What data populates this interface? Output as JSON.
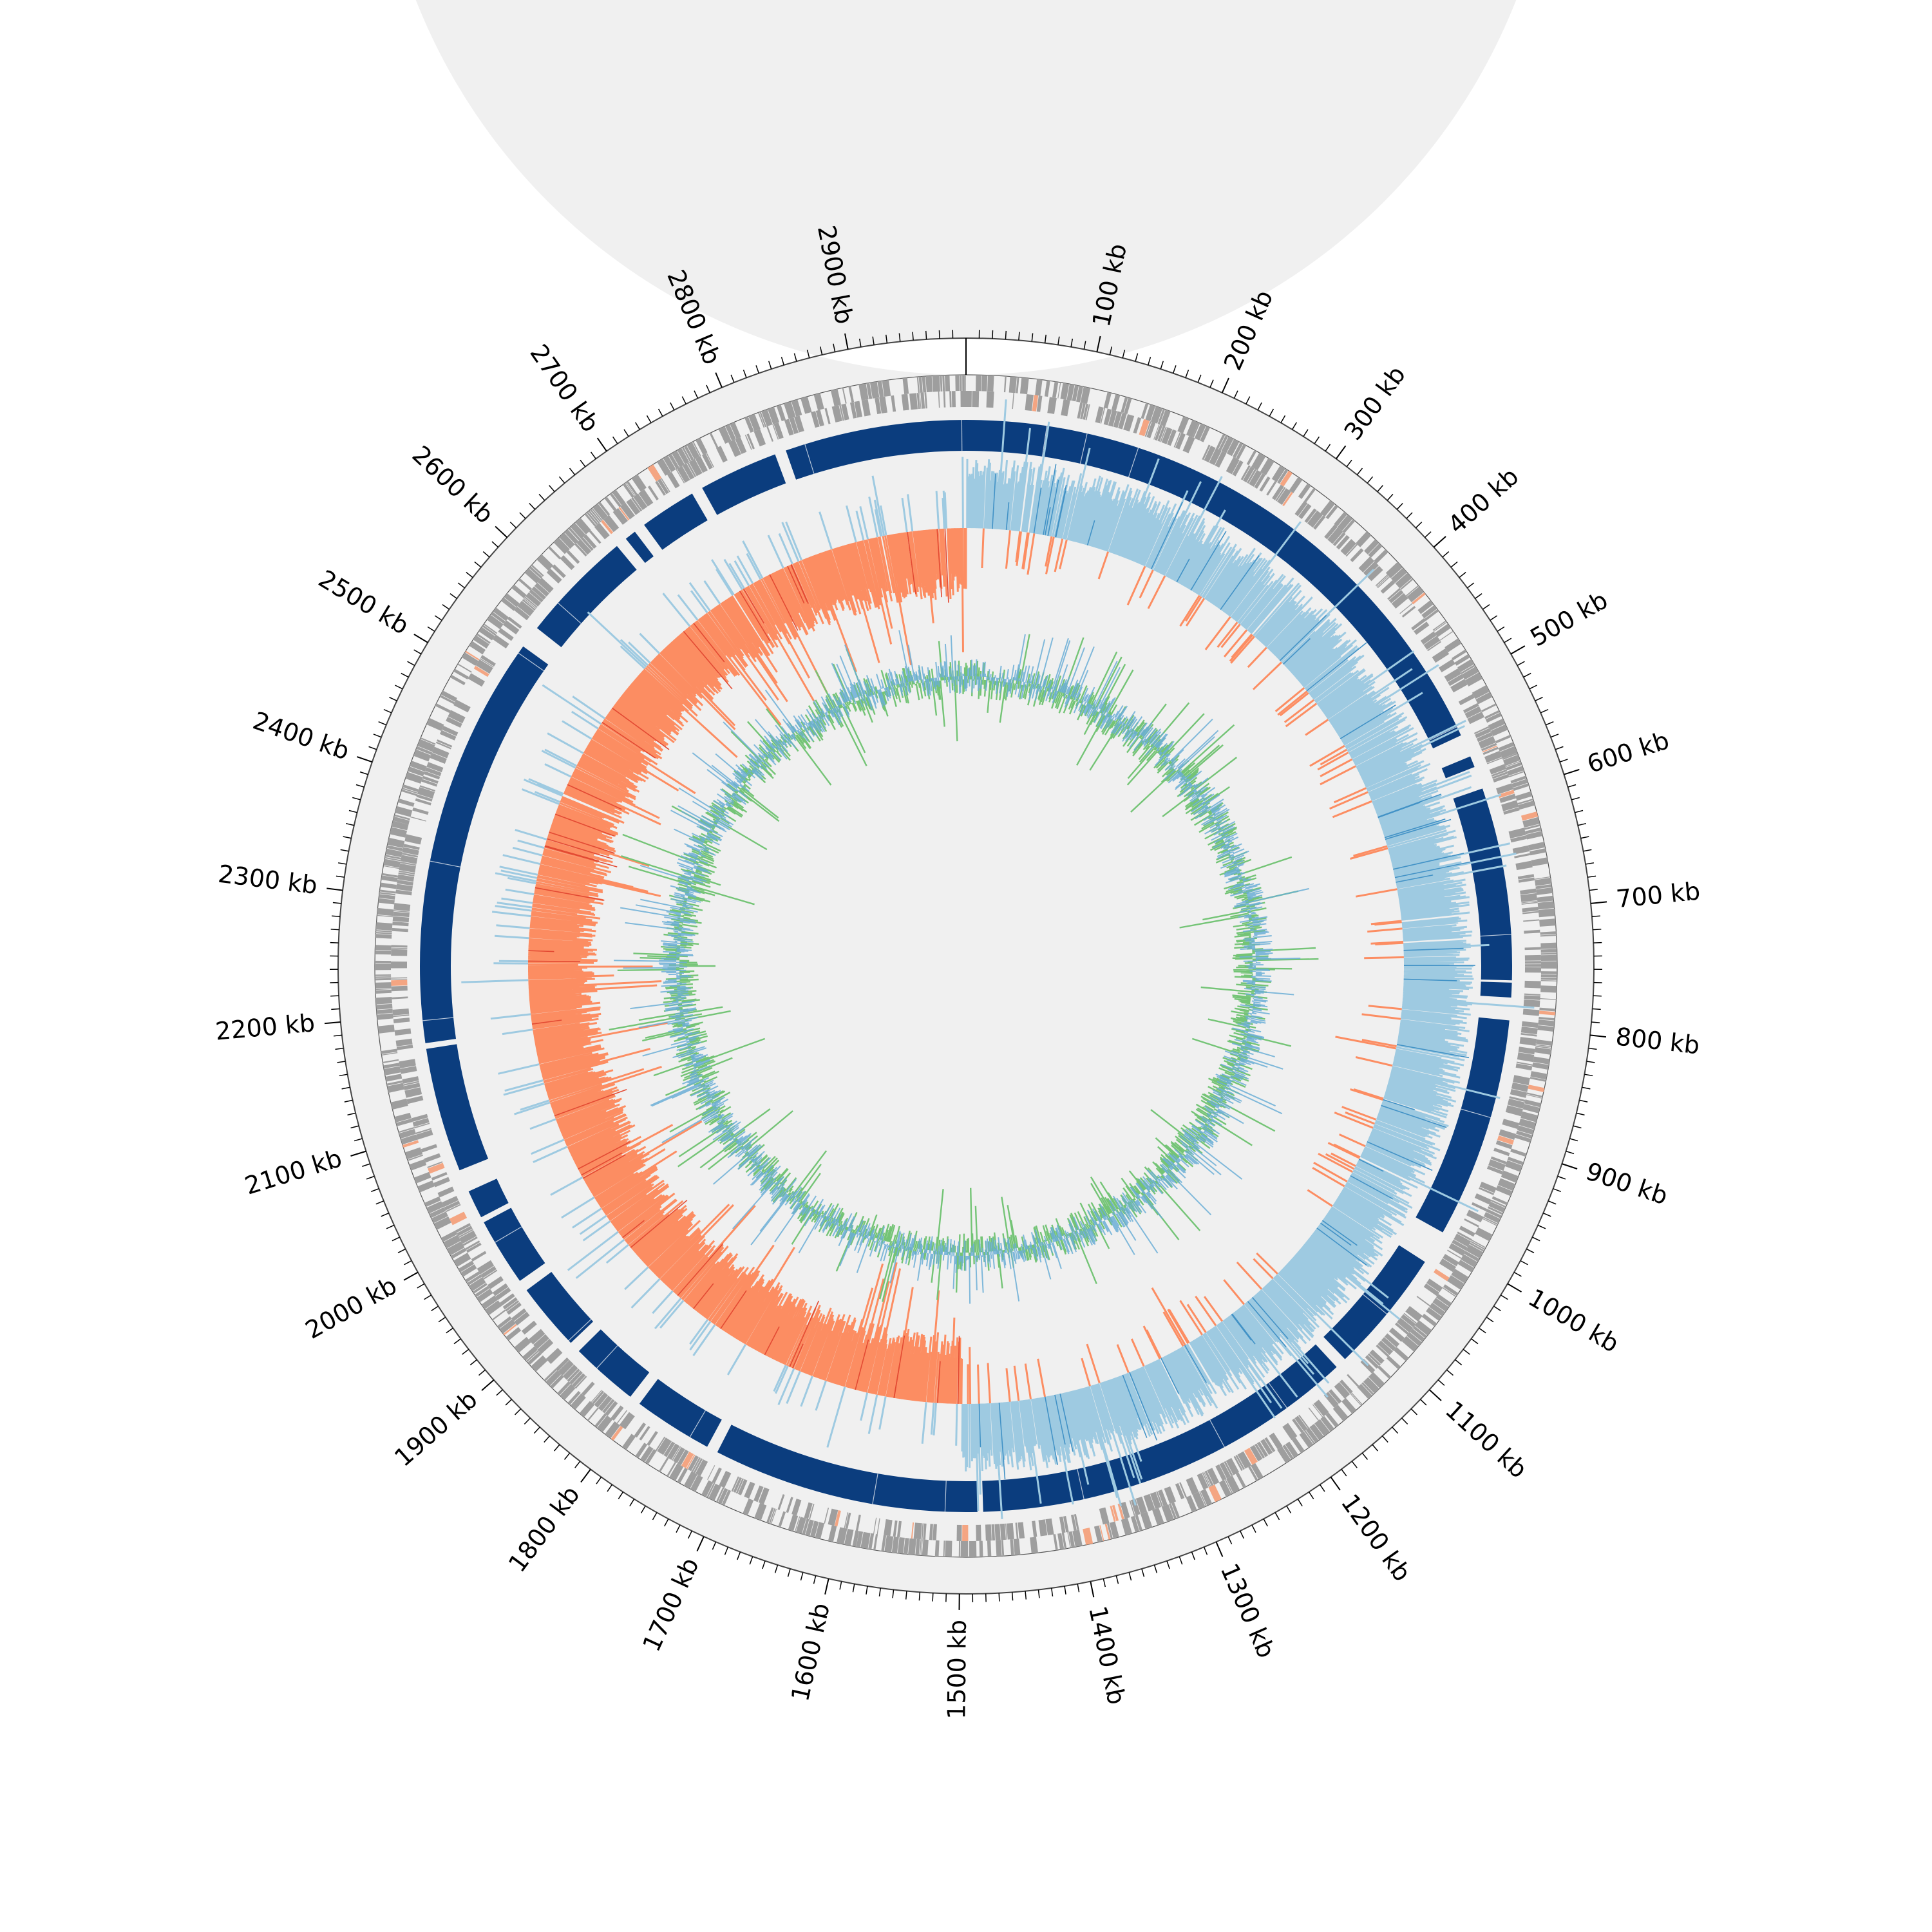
{
  "genome_map": {
    "genome_length_kb": 2990,
    "axis": {
      "unit_label": "kb",
      "tick_labels": [
        "100 kb",
        "200 kb",
        "300 kb",
        "400 kb",
        "500 kb",
        "600 kb",
        "700 kb",
        "800 kb",
        "900 kb",
        "1000 kb",
        "1100 kb",
        "1200 kb",
        "1300 kb",
        "1400 kb",
        "1500 kb",
        "1600 kb",
        "1700 kb",
        "1800 kb",
        "1900 kb",
        "2000 kb",
        "2100 kb",
        "2200 kb",
        "2300 kb",
        "2400 kb",
        "2500 kb",
        "2600 kb",
        "2700 kb",
        "2800 kb",
        "2900 kb"
      ],
      "tick_values_kb": [
        100,
        200,
        300,
        400,
        500,
        600,
        700,
        800,
        900,
        1000,
        1100,
        1200,
        1300,
        1400,
        1500,
        1600,
        1700,
        1800,
        1900,
        2000,
        2100,
        2200,
        2300,
        2400,
        2500,
        2600,
        2700,
        2800,
        2900
      ]
    },
    "colors": {
      "ring_background": "#f0f0f0",
      "gene_forward": "#9e9e9e",
      "gene_highlight": "#f4a582",
      "blocks": "#0b3d7e",
      "gc_skew_positive": "#9ecae1",
      "gc_skew_negative": "#fc8d62",
      "gc_content_fill": "#74c476",
      "gc_content_line": "#6baed6"
    },
    "blocks_kb": [
      [
        0,
        540
      ],
      [
        560,
        570
      ],
      [
        590,
        760
      ],
      [
        762,
        775
      ],
      [
        795,
        990
      ],
      [
        1020,
        1130
      ],
      [
        1140,
        1480
      ],
      [
        1485,
        1720
      ],
      [
        1730,
        1800
      ],
      [
        1810,
        1870
      ],
      [
        1880,
        1940
      ],
      [
        1950,
        2010
      ],
      [
        2015,
        2040
      ],
      [
        2060,
        2170
      ],
      [
        2175,
        2540
      ],
      [
        2560,
        2660
      ],
      [
        2670,
        2680
      ],
      [
        2690,
        2740
      ],
      [
        2750,
        2820
      ],
      [
        2830,
        2990
      ]
    ],
    "gc_skew_inflection_kb": [
      0,
      1500
    ]
  }
}
